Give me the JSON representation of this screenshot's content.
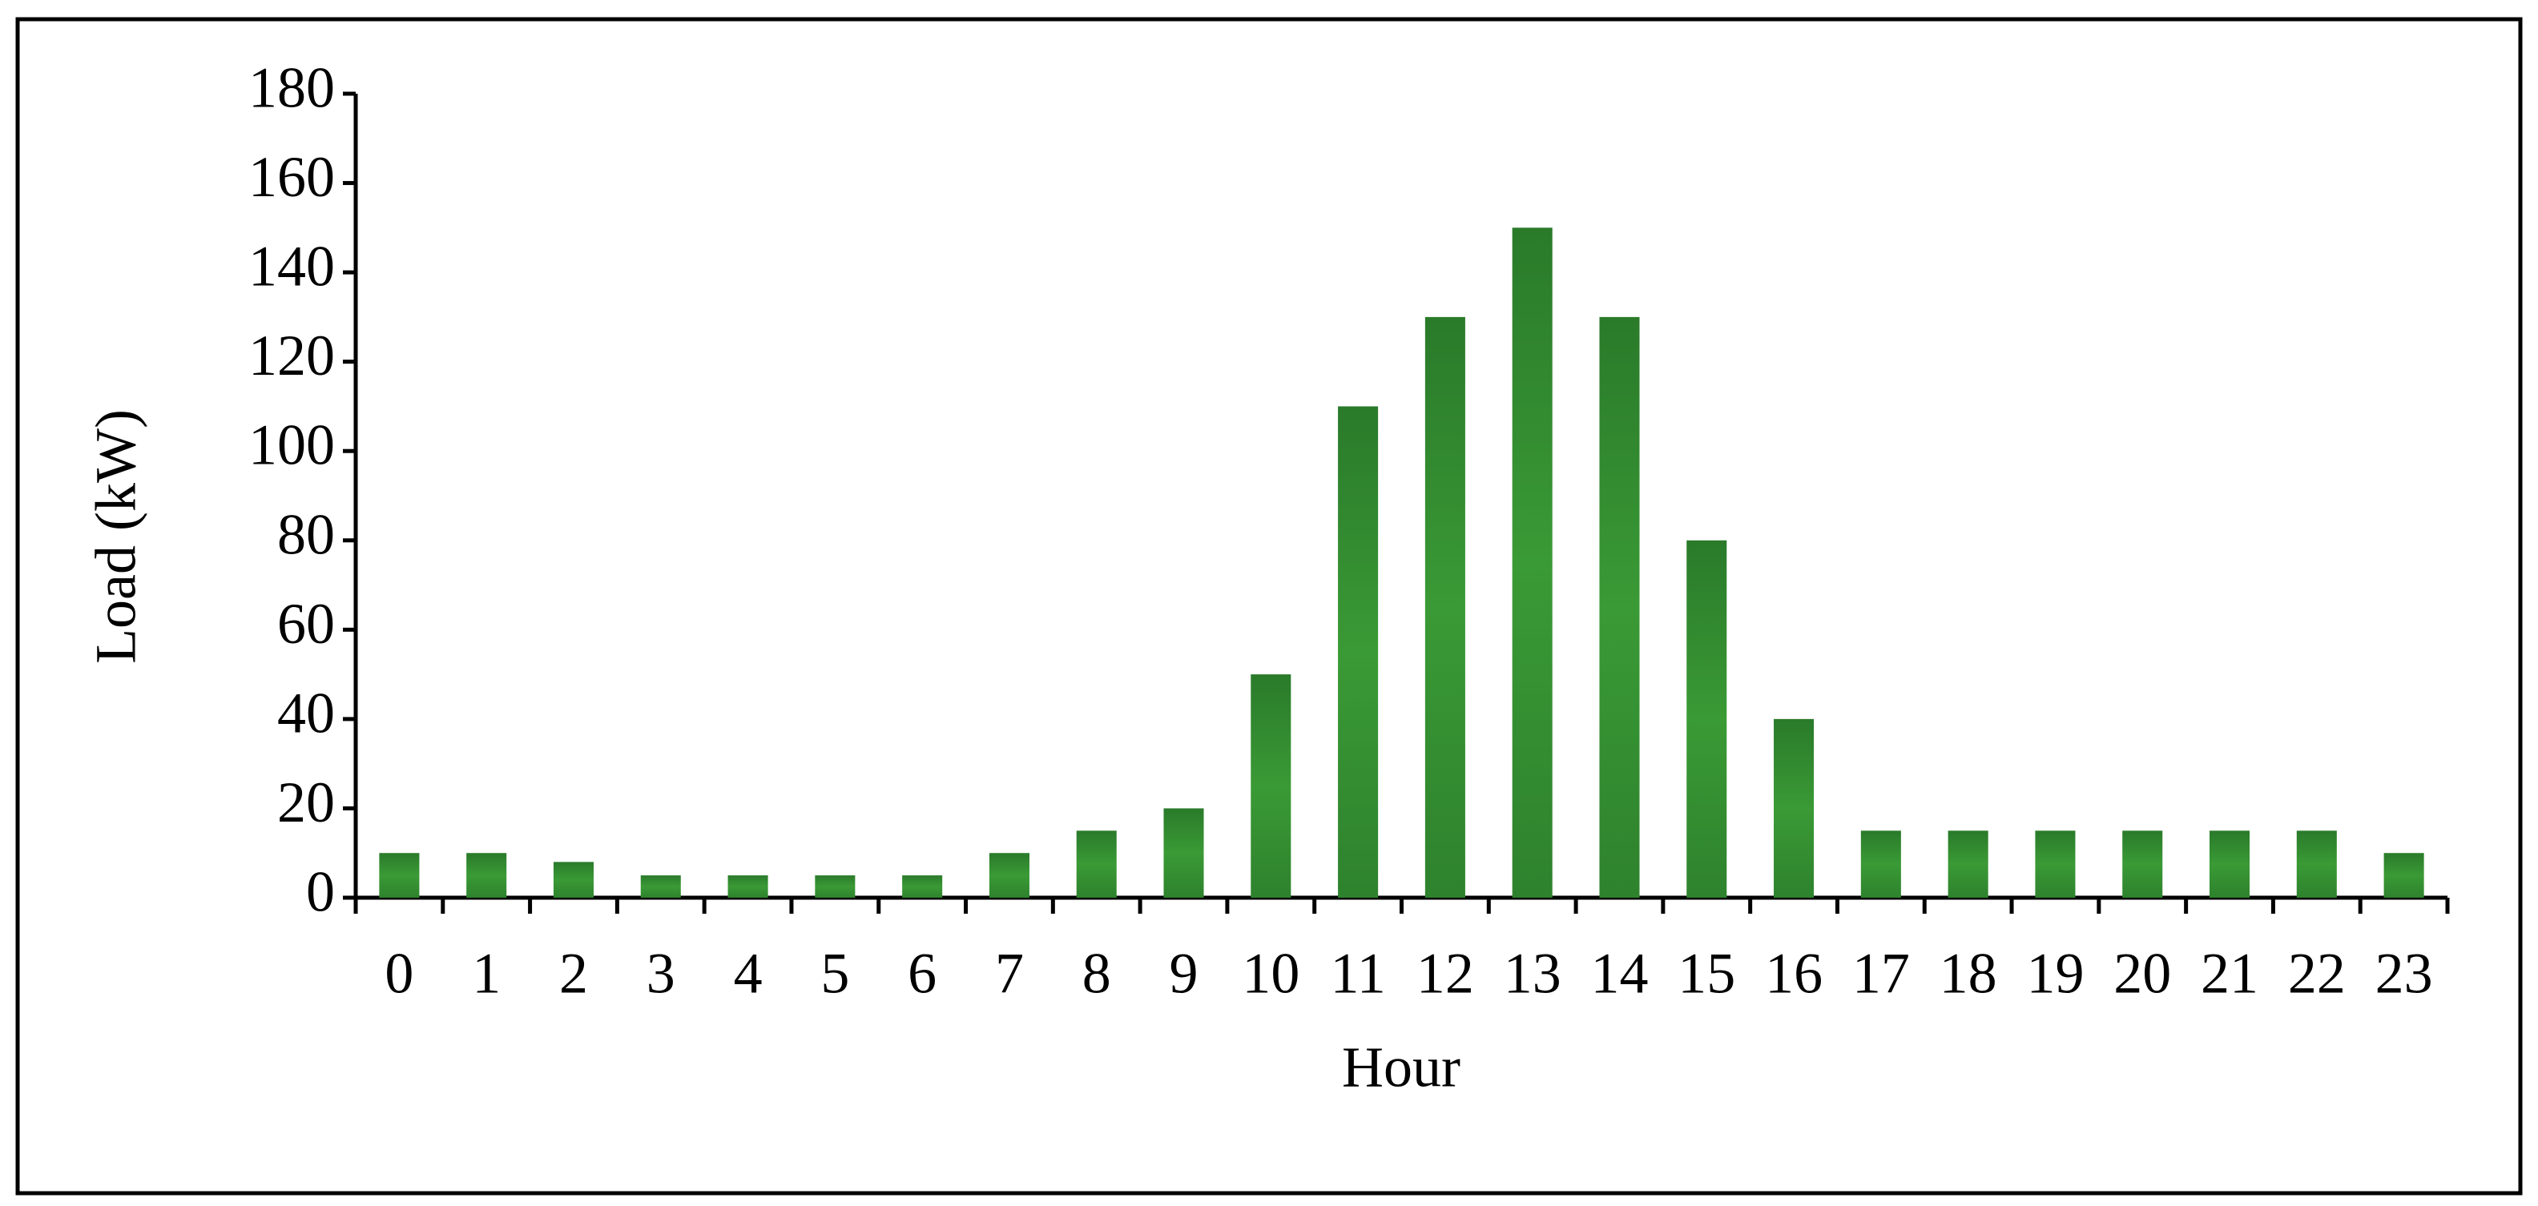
{
  "chart_data": {
    "type": "bar",
    "x_label": "Hour",
    "y_label": "Load (kW)",
    "categories": [
      "0",
      "1",
      "2",
      "3",
      "4",
      "5",
      "6",
      "7",
      "8",
      "9",
      "10",
      "11",
      "12",
      "13",
      "14",
      "15",
      "16",
      "17",
      "18",
      "19",
      "20",
      "21",
      "22",
      "23"
    ],
    "values": [
      10,
      10,
      8,
      5,
      5,
      5,
      5,
      10,
      15,
      20,
      50,
      110,
      130,
      150,
      130,
      80,
      40,
      15,
      15,
      15,
      15,
      15,
      15,
      10
    ],
    "color": "#3a9a35",
    "ylim": [
      0,
      180
    ],
    "yticks": [
      0,
      20,
      40,
      60,
      80,
      100,
      120,
      140,
      160,
      180
    ],
    "grid": false
  }
}
